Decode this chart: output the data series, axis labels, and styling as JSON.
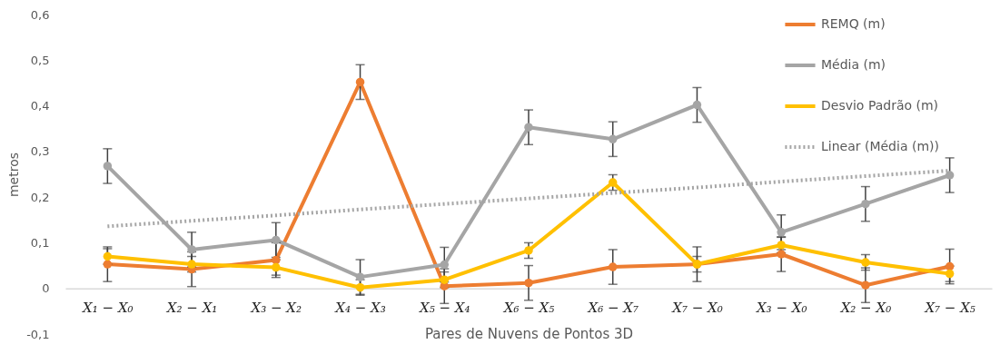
{
  "chart_data": {
    "type": "line",
    "xlabel": "Pares de Nuvens de Pontos 3D",
    "ylabel": "metros",
    "categories": [
      "X₁ − X₀",
      "X₂ − X₁",
      "X₃ − X₂",
      "X₄ − X₃",
      "X₅ − X₄",
      "X₆ − X₅",
      "X₆ − X₇",
      "X₇ − X₀",
      "X₃ − X₀",
      "X₂ − X₀",
      "X₇ − X₅"
    ],
    "series": [
      {
        "name": "REMQ (m)",
        "color": "#ed7d31",
        "values": [
          0.053,
          0.042,
          0.062,
          0.452,
          0.005,
          0.012,
          0.047,
          0.053,
          0.075,
          0.007,
          0.048
        ],
        "errors": [
          0.038,
          0.038,
          0.038,
          0.038,
          0.038,
          0.038,
          0.038,
          0.038,
          0.038,
          0.038,
          0.038
        ]
      },
      {
        "name": "Média (m)",
        "color": "#a5a5a5",
        "values": [
          0.268,
          0.085,
          0.106,
          0.025,
          0.052,
          0.353,
          0.327,
          0.402,
          0.123,
          0.185,
          0.248
        ],
        "errors": [
          0.038,
          0.038,
          0.038,
          0.038,
          0.038,
          0.038,
          0.038,
          0.038,
          0.038,
          0.038,
          0.038
        ]
      },
      {
        "name": "Desvio Padrão (m)",
        "color": "#ffc000",
        "values": [
          0.07,
          0.053,
          0.046,
          0.002,
          0.019,
          0.083,
          0.232,
          0.053,
          0.095,
          0.057,
          0.032
        ],
        "errors": [
          0.017,
          0.017,
          0.017,
          0.017,
          0.017,
          0.017,
          0.017,
          0.017,
          0.017,
          0.017,
          0.017
        ]
      },
      {
        "name": "Linear (Média (m))",
        "color": "#a5a5a5",
        "type": "line",
        "line_style": "dotted",
        "marker": "none",
        "values": [
          0.136,
          0.148,
          0.16,
          0.173,
          0.185,
          0.197,
          0.209,
          0.221,
          0.234,
          0.246,
          0.258
        ]
      }
    ],
    "ylim": [
      -0.1,
      0.6
    ],
    "yticks": [
      {
        "value": -0.1,
        "label": "-0,1"
      },
      0,
      {
        "value": 0.1,
        "label": "0,1"
      },
      {
        "value": 0.2,
        "label": "0,2"
      },
      {
        "value": 0.3,
        "label": "0,3"
      },
      {
        "value": 0.4,
        "label": "0,4"
      },
      {
        "value": 0.5,
        "label": "0,5"
      },
      {
        "value": 0.6,
        "label": "0,6"
      }
    ],
    "grid": false,
    "legend": "top right",
    "marker": "circle",
    "line_style": "solid"
  }
}
